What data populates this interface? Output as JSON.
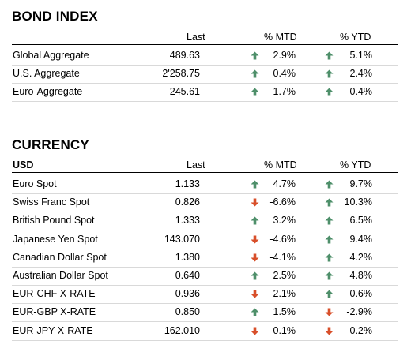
{
  "bond_index": {
    "title": "BOND INDEX",
    "headers": {
      "name": "",
      "last": "Last",
      "mtd": "% MTD",
      "ytd": "% YTD"
    },
    "rows": [
      {
        "name": "Global Aggregate",
        "last": "489.63",
        "mtd": "2.9%",
        "mtd_dir": "up",
        "ytd": "5.1%",
        "ytd_dir": "up"
      },
      {
        "name": "U.S. Aggregate",
        "last": "2'258.75",
        "mtd": "0.4%",
        "mtd_dir": "up",
        "ytd": "2.4%",
        "ytd_dir": "up"
      },
      {
        "name": "Euro-Aggregate",
        "last": "245.61",
        "mtd": "1.7%",
        "mtd_dir": "up",
        "ytd": "0.4%",
        "ytd_dir": "up"
      }
    ]
  },
  "currency": {
    "title": "CURRENCY",
    "headers": {
      "name": "USD",
      "last": "Last",
      "mtd": "% MTD",
      "ytd": "% YTD"
    },
    "rows": [
      {
        "name": "Euro Spot",
        "last": "1.133",
        "mtd": "4.7%",
        "mtd_dir": "up",
        "ytd": "9.7%",
        "ytd_dir": "up"
      },
      {
        "name": "Swiss Franc Spot",
        "last": "0.826",
        "mtd": "-6.6%",
        "mtd_dir": "down",
        "ytd": "10.3%",
        "ytd_dir": "up"
      },
      {
        "name": "British Pound Spot",
        "last": "1.333",
        "mtd": "3.2%",
        "mtd_dir": "up",
        "ytd": "6.5%",
        "ytd_dir": "up"
      },
      {
        "name": "Japanese Yen Spot",
        "last": "143.070",
        "mtd": "-4.6%",
        "mtd_dir": "down",
        "ytd": "9.4%",
        "ytd_dir": "up"
      },
      {
        "name": "Canadian Dollar Spot",
        "last": "1.380",
        "mtd": "-4.1%",
        "mtd_dir": "down",
        "ytd": "4.2%",
        "ytd_dir": "up"
      },
      {
        "name": "Australian Dollar Spot",
        "last": "0.640",
        "mtd": "2.5%",
        "mtd_dir": "up",
        "ytd": "4.8%",
        "ytd_dir": "up"
      },
      {
        "name": "EUR-CHF X-RATE",
        "last": "0.936",
        "mtd": "-2.1%",
        "mtd_dir": "down",
        "ytd": "0.6%",
        "ytd_dir": "up"
      },
      {
        "name": "EUR-GBP X-RATE",
        "last": "0.850",
        "mtd": "1.5%",
        "mtd_dir": "up",
        "ytd": "-2.9%",
        "ytd_dir": "down"
      },
      {
        "name": "EUR-JPY X-RATE",
        "last": "162.010",
        "mtd": "-0.1%",
        "mtd_dir": "down",
        "ytd": "-0.2%",
        "ytd_dir": "down"
      }
    ]
  },
  "icons": {
    "up": "arrow-up-icon",
    "down": "arrow-down-icon"
  },
  "colors": {
    "up": "#4e8f6a",
    "down": "#d84f2a",
    "row_divider": "#d9d9d9",
    "header_divider": "#000000"
  }
}
